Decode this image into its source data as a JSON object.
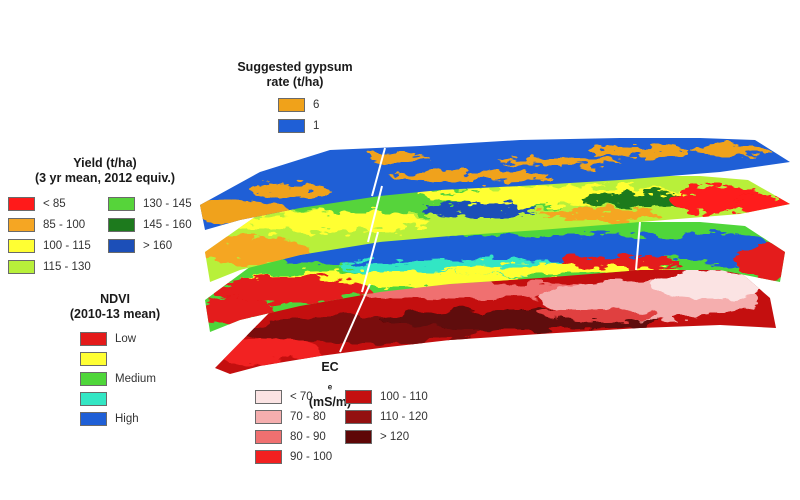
{
  "gypsum": {
    "title_line1": "Suggested gypsum",
    "title_line2": "rate (t/ha)",
    "items": [
      {
        "label": "6",
        "color": "#f0a21a"
      },
      {
        "label": "1",
        "color": "#1f5fd6"
      }
    ]
  },
  "yield": {
    "title_line1": "Yield (t/ha)",
    "title_line2": "(3 yr mean, 2012 equiv.)",
    "items": [
      {
        "label": "< 85",
        "color": "#ff1a1a"
      },
      {
        "label": "85 - 100",
        "color": "#f5a623"
      },
      {
        "label": "100 - 115",
        "color": "#ffff33"
      },
      {
        "label": "115 - 130",
        "color": "#b8f03a"
      },
      {
        "label": "130 - 145",
        "color": "#56d43a"
      },
      {
        "label": "145 - 160",
        "color": "#1d7a1d"
      },
      {
        "label": "> 160",
        "color": "#1c4fb8"
      }
    ]
  },
  "ndvi": {
    "title_line1": "NDVI",
    "title_line2": "(2010-13 mean)",
    "items": [
      {
        "label": "Low",
        "color": "#e41a1a"
      },
      {
        "label": "",
        "color": "#ffff33"
      },
      {
        "label": "Medium",
        "color": "#4fd63a"
      },
      {
        "label": "",
        "color": "#33e6c4"
      },
      {
        "label": "High",
        "color": "#1f5fd6"
      }
    ]
  },
  "ece": {
    "title_main": "EC",
    "title_sub": "e",
    "title_rest": " (mS/m)",
    "items": [
      {
        "label": "< 70",
        "color": "#fbe3e3"
      },
      {
        "label": "70 - 80",
        "color": "#f5aeae"
      },
      {
        "label": "80 - 90",
        "color": "#f07070"
      },
      {
        "label": "90 - 100",
        "color": "#f22020"
      },
      {
        "label": "100 - 110",
        "color": "#c40f0f"
      },
      {
        "label": "110 - 120",
        "color": "#931010"
      },
      {
        "label": "> 120",
        "color": "#5e0707"
      }
    ]
  }
}
